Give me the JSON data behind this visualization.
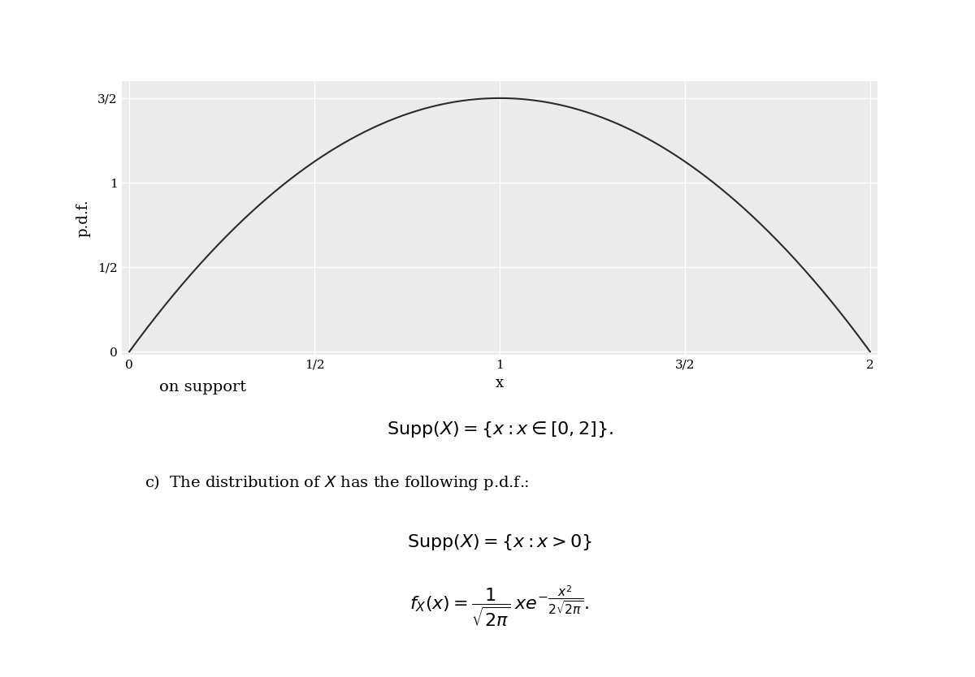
{
  "plot_bg_color": "#ebebeb",
  "grid_color": "#ffffff",
  "line_color": "#2b2b2b",
  "line_width": 1.5,
  "x_min": 0,
  "x_max": 2,
  "y_min": 0,
  "y_max": 1.6,
  "yticks": [
    0,
    0.5,
    1.0,
    1.5
  ],
  "ytick_labels": [
    "0",
    "1/2",
    "1",
    "3/2"
  ],
  "xticks": [
    0,
    0.5,
    1.0,
    1.5,
    2.0
  ],
  "xtick_labels": [
    "0",
    "1/2",
    "1",
    "3/2",
    "2"
  ],
  "xlabel": "x",
  "ylabel": "p.d.f.",
  "text_on_support": "on support",
  "text_supp1": "$\\mathrm{Supp}(X) = \\{x : x \\in [0,2]\\}.$",
  "text_c": "c)  The distribution of $X$ has the following p.d.f.:",
  "text_supp2": "$\\mathrm{Supp}(X) = \\{x : x > 0\\}$",
  "text_pdf": "$f_X(x) = \\dfrac{1}{\\sqrt{2\\pi}}\\,xe^{-\\dfrac{x^2}{2\\sqrt{2\\pi}}}.$"
}
